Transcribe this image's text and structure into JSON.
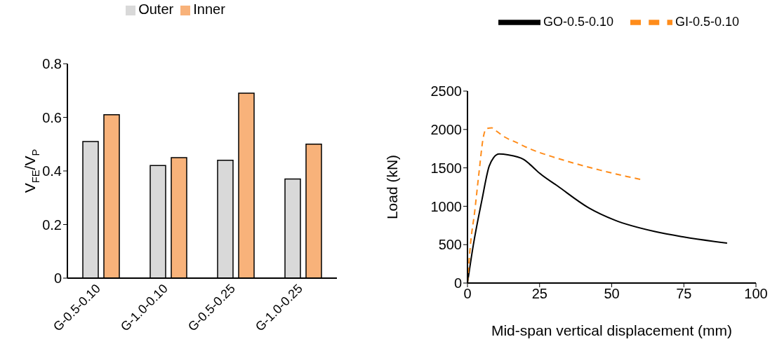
{
  "chart_data": [
    {
      "type": "bar",
      "categories": [
        "G-0.5-0.10",
        "G-1.0-0.10",
        "G-0.5-0.25",
        "G-1.0-0.25"
      ],
      "ylabel": "V$_{FE}$/V$_{P}$",
      "ylim": [
        0,
        0.8
      ],
      "yticks": [
        {
          "value": 0,
          "label": "0"
        },
        0.2,
        0.4,
        0.6,
        0.8
      ],
      "legend": "top",
      "grid": false,
      "series": [
        {
          "name": "Outer",
          "color": "#d9d9d9",
          "values": [
            0.51,
            0.42,
            0.44,
            0.37
          ]
        },
        {
          "name": "Inner",
          "color": "#f8b27a",
          "values": [
            0.61,
            0.45,
            0.69,
            0.5
          ]
        }
      ]
    },
    {
      "type": "line",
      "xlabel": "Mid-span vertical displacement (mm)",
      "ylabel": "Load (kN)",
      "xlim": [
        0,
        100
      ],
      "xticks": [
        0,
        25,
        50,
        75,
        100
      ],
      "ylim": [
        0,
        2500
      ],
      "yticks": [
        0,
        500,
        1000,
        1500,
        2000,
        2500
      ],
      "legend": "top right",
      "grid": false,
      "marker": "none",
      "series": [
        {
          "name": "GO-0.5-0.10",
          "color": "#000000",
          "line_style": "solid",
          "x": [
            0,
            2,
            5,
            7.5,
            9,
            11,
            14,
            19.5,
            21.5,
            25,
            31,
            42,
            51,
            65,
            75,
            90
          ],
          "values": [
            0,
            490,
            1080,
            1520,
            1630,
            1680,
            1670,
            1610,
            1550,
            1430,
            1270,
            980,
            820,
            670,
            600,
            520
          ]
        },
        {
          "name": "GI-0.5-0.10",
          "color": "#ff8c1a",
          "line_style": "dashed",
          "x": [
            0,
            1,
            2.5,
            4,
            5.5,
            6.5,
            8.5,
            10,
            13,
            17,
            21.5,
            29,
            37,
            46,
            55,
            60
          ],
          "values": [
            0,
            490,
            930,
            1440,
            1900,
            2010,
            2020,
            1980,
            1900,
            1830,
            1750,
            1650,
            1560,
            1470,
            1390,
            1350
          ]
        }
      ]
    }
  ]
}
